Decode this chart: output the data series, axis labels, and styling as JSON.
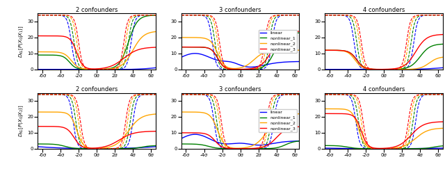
{
  "titles_row1": [
    "2 confounders",
    "3 confounders",
    "4 confounders"
  ],
  "titles_row2": [
    "2 confounders",
    "3 confounders",
    "4 confounders"
  ],
  "ylabel_row1": "$D_{KL}[P(X_0|X_1)]$",
  "ylabel_row2": "$D_{KL}[P(X_0|X_2)]$",
  "colors": [
    "blue",
    "green",
    "orange",
    "red"
  ],
  "labels": [
    "linear",
    "nonlinear_1",
    "nonlinear_2",
    "nonlinear_3"
  ],
  "x_ticks": [
    -6,
    -4,
    -2,
    0,
    2,
    4,
    6
  ],
  "x_tick_labels": [
    "-6σ",
    "-4σ",
    "-2σ",
    "0σ",
    "2σ",
    "4σ",
    "6σ"
  ],
  "ylim": [
    0,
    35
  ],
  "xlim": [
    -6.5,
    6.5
  ],
  "clip_val": 34.0
}
